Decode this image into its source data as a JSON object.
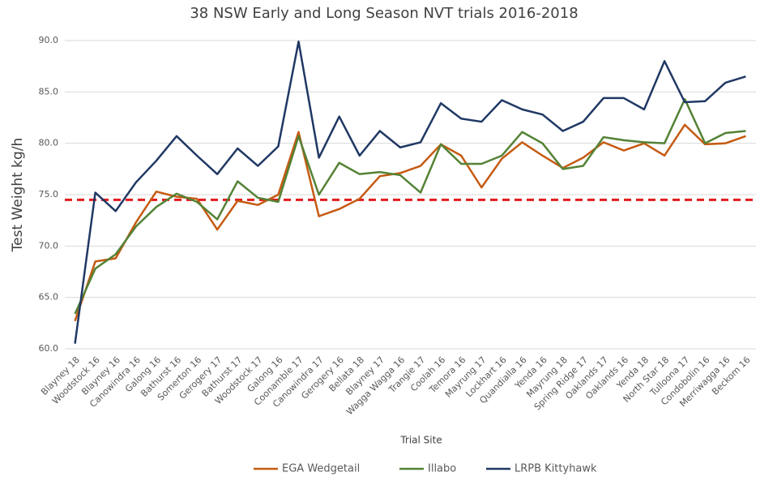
{
  "chart_data": {
    "type": "line",
    "title": "38 NSW Early and Long Season NVT trials 2016-2018",
    "x_label": "Trial Site",
    "y_label": "Test Weight kg/h",
    "categories": [
      "Blayney 18",
      "Woodstock 16",
      "Blayney 16",
      "Canowindra 16",
      "Galong 16",
      "Bathurst 16",
      "Somerton 16",
      "Gerogery 17",
      "Bathurst 17",
      "Woodstock 17",
      "Galong 16",
      "Coonamble 17",
      "Canowindra 17",
      "Gerogery 16",
      "Bellata 18",
      "Blayney 17",
      "Wagga Wagga 16",
      "Trangie 17",
      "Coolah 16",
      "Temora 16",
      "Mayrung 17",
      "Lockhart 16",
      "Quandialla 16",
      "Yenda 16",
      "Mayrung 18",
      "Spring Ridge 17",
      "Oaklands 17",
      "Oaklands 16",
      "Yenda 18",
      "North Star 18",
      "Tulloona 17",
      "Condobolin 16",
      "Merriwagga 16",
      "Beckom 16"
    ],
    "series": [
      {
        "name": "EGA Wedgetail",
        "color": "#c55a11",
        "values": [
          62.7,
          68.5,
          68.8,
          72.3,
          75.3,
          74.8,
          74.6,
          71.6,
          74.4,
          74.0,
          75.0,
          81.1,
          72.9,
          73.6,
          74.6,
          76.8,
          77.1,
          77.8,
          79.9,
          78.8,
          75.7,
          78.5,
          80.1,
          78.8,
          77.6,
          78.6,
          80.1,
          79.3,
          80.0,
          78.8,
          81.8,
          79.9,
          80.0,
          80.7
        ]
      },
      {
        "name": "Illabo",
        "color": "#548235",
        "values": [
          63.4,
          67.8,
          69.2,
          71.9,
          73.8,
          75.1,
          74.3,
          72.6,
          76.3,
          74.7,
          74.3,
          80.7,
          75.0,
          78.1,
          77.0,
          77.2,
          76.9,
          75.2,
          79.9,
          78.0,
          78.0,
          78.8,
          81.1,
          80.0,
          77.5,
          77.8,
          80.6,
          80.3,
          80.1,
          80.0,
          84.3,
          80.0,
          81.0,
          81.2
        ]
      },
      {
        "name": "LRPB Kittyhawk",
        "color": "#203864",
        "values": [
          60.5,
          75.2,
          73.4,
          76.2,
          78.3,
          80.7,
          78.8,
          77.0,
          79.5,
          77.8,
          79.7,
          89.9,
          78.6,
          82.6,
          78.8,
          81.2,
          79.6,
          80.1,
          83.9,
          82.4,
          82.1,
          84.2,
          83.3,
          82.8,
          81.2,
          82.1,
          84.4,
          84.4,
          83.3,
          88.0,
          84.0,
          84.1,
          85.9,
          86.5
        ]
      }
    ],
    "reference_line": {
      "value": 74.5,
      "color": "#e31a1c"
    },
    "ylim": [
      60,
      90
    ],
    "yticks": [
      {
        "value": 60,
        "label": "60.0"
      },
      {
        "value": 65,
        "label": "65.0"
      },
      {
        "value": 70,
        "label": "70.0"
      },
      {
        "value": 75,
        "label": "75.0"
      },
      {
        "value": 80,
        "label": "80.0"
      },
      {
        "value": 85,
        "label": "85.0"
      },
      {
        "value": 90,
        "label": "90.0"
      }
    ],
    "grid": true,
    "legend": "bottom"
  }
}
